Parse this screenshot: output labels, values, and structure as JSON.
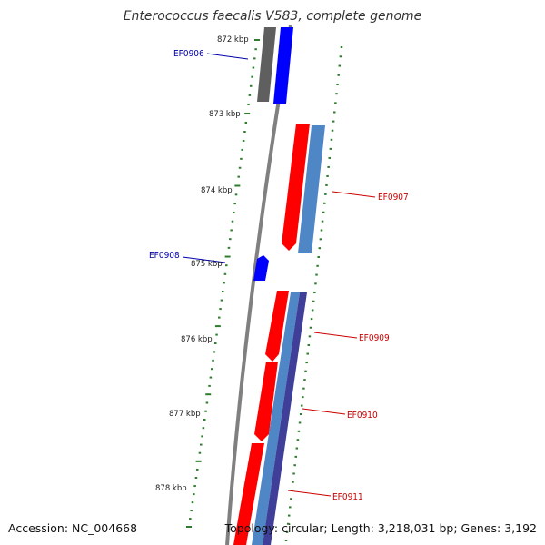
{
  "map": {
    "title": "Enterococcus faecalis V583, complete genome",
    "accession_label": "Accession: NC_004668",
    "summary_label": "Topology: circular; Length: 3,218,031 bp; Genes: 3,192",
    "colors": {
      "backbone": "#808080",
      "tick": "#2e7d2e",
      "forward_cds": "#ff0000",
      "forward_gene": "#4f86c6",
      "reverse_cds": "#0000ff",
      "reverse_gene": "#5f5f5f",
      "label_forward": "#cc0000",
      "label_reverse": "#0000aa"
    }
  },
  "ticks": [
    {
      "label": "872 kbp"
    },
    {
      "label": "873 kbp"
    },
    {
      "label": "874 kbp"
    },
    {
      "label": "875 kbp"
    },
    {
      "label": "876 kbp"
    },
    {
      "label": "877 kbp"
    },
    {
      "label": "878 kbp"
    }
  ],
  "genes": [
    {
      "name": "EF0906",
      "strand": "reverse"
    },
    {
      "name": "EF0907",
      "strand": "forward"
    },
    {
      "name": "EF0908",
      "strand": "reverse"
    },
    {
      "name": "EF0909",
      "strand": "forward"
    },
    {
      "name": "EF0910",
      "strand": "forward"
    },
    {
      "name": "EF0911",
      "strand": "forward"
    }
  ]
}
